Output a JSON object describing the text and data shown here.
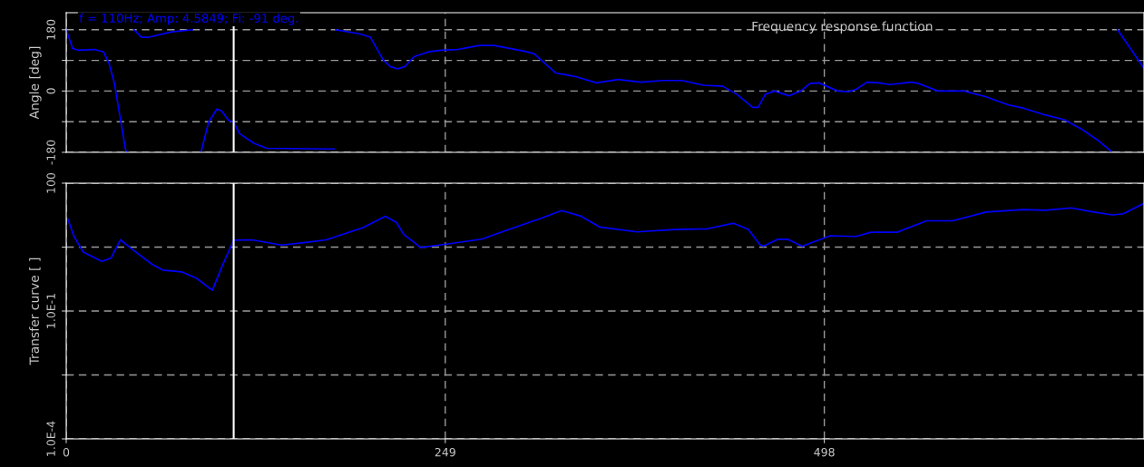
{
  "chart_data": [
    {
      "type": "line",
      "title": "Frequency response function",
      "ylabel": "Angle [deg]",
      "annotations": [
        "f = 110Hz; Amp: 4.5849; Fi: -91 deg."
      ],
      "series": [
        {
          "color": "#0000ff",
          "x": [
            0,
            4.2,
            7.8,
            18.5,
            24.5,
            28.0,
            31.6,
            35.2,
            38.8,
            39.5,
            null,
            44.5,
            49.5,
            54.3,
            68.6,
            82.9,
            null,
            88.5,
            93.6,
            99.0,
            102.0,
            106.7,
            110,
            113.9,
            123.5,
            131.8,
            171.2,
            175.9,
            null,
            177.1,
            192.6,
            199.8,
            208.2,
            212.9,
            217.7,
            222.5,
            228.4,
            238,
            246.3,
            257,
            271.4,
            280.9,
            300,
            307.2,
            314.3,
            321.5,
            330.4,
            335.8,
            348.3,
            362.6,
            377.5,
            391.8,
            404.4,
            418.7,
            431.2,
            440.7,
            450.9,
            454.5,
            459.2,
            465.2,
            474.7,
            482.5,
            488.5,
            494.4,
            506.9,
            514.1,
            518.9,
            526.0,
            533.8,
            541,
            555.3,
            560.0,
            572.6,
            589.9,
            604.2,
            619.1,
            628.6,
            642.9,
            655.5,
            667.4,
            677.5,
            685.9,
            686.5,
            null,
            690.6,
            708
          ],
          "values": [
            180,
            125,
            120,
            122,
            115,
            82,
            24,
            -72,
            -168,
            -180,
            null,
            180,
            158,
            158,
            173,
            180,
            null,
            -180,
            -91,
            -53,
            -58,
            -86,
            -91,
            -125,
            -154,
            -168,
            -170,
            -170,
            null,
            180,
            168,
            158,
            91,
            72,
            65,
            72,
            101,
            115,
            120,
            122,
            134,
            134,
            118,
            110,
            82,
            53,
            46,
            41,
            24,
            34,
            26,
            31,
            31,
            17,
            14,
            -10,
            -48,
            -48,
            -10,
            0,
            -14,
            0,
            22,
            24,
            0,
            -2,
            5,
            26,
            24,
            19,
            26,
            22,
            0,
            0,
            -17,
            -41,
            -50,
            -70,
            -84,
            -113,
            -144,
            -175,
            -180,
            null,
            180,
            67
          ]
        }
      ],
      "xlim": [
        0,
        708
      ],
      "xticks": [
        0,
        249,
        498
      ],
      "ylim": [
        -180,
        230
      ],
      "yticks": [
        180,
        {
          "value": 90,
          "label": null
        },
        0,
        {
          "value": -90,
          "label": null
        },
        -180
      ],
      "tick_labels": "y",
      "grid": true,
      "line_style": "solid",
      "marker": "none",
      "ref_lines": [
        {
          "axis": "x",
          "value": 110,
          "color": "#ffffff"
        }
      ]
    },
    {
      "type": "line",
      "ylabel": "Transfer curve [ ]",
      "log": "y",
      "series": [
        {
          "color": "#0000ff",
          "x": [
            1.0,
            5.1,
            11.2,
            23.4,
            29.5,
            35.6,
            44.1,
            56.2,
            63.6,
            75.7,
            85.5,
            96.0,
            102.5,
            110,
            122.0,
            141.5,
            158.5,
            170.7,
            195.0,
            209.6,
            216.9,
            221.8,
            232.8,
            248.6,
            272.9,
            287.5,
            311.9,
            325.3,
            338.2,
            350.6,
            375.0,
            399.4,
            421.3,
            438.4,
            448.1,
            455.5,
            457.9,
            467.6,
            473.7,
            483.5,
            501.8,
            518.9,
            528.6,
            545.7,
            565.2,
            582.3,
            604.2,
            628.6,
            643.2,
            660.3,
            672.4,
            687.1,
            694.4,
            708
          ],
          "values": [
            14.5,
            5.65,
            2.42,
            1.46,
            1.76,
            4.68,
            2.67,
            1.26,
            0.91,
            0.83,
            0.59,
            0.306,
            1.15,
            4.5849,
            4.68,
            3.53,
            4.11,
            4.68,
            9.04,
            16.8,
            12.0,
            6.22,
            3.1,
            3.66,
            4.85,
            7.48,
            15.0,
            22.7,
            16.8,
            9.33,
            7.18,
            8.2,
            8.51,
            11.5,
            8.2,
            3.65,
            3.31,
            4.83,
            4.83,
            3.31,
            5.83,
            5.62,
            7.05,
            7.05,
            13.1,
            13.1,
            21.0,
            24.0,
            23.1,
            26.3,
            21.8,
            18.0,
            19.1,
            33.6
          ]
        }
      ],
      "xlim": [
        0,
        708
      ],
      "xticks": [
        0,
        249,
        498
      ],
      "ylim": [
        0.0001,
        100
      ],
      "yticks": [
        {
          "value": 100,
          "label": "100"
        },
        {
          "value": 3.162,
          "label": null
        },
        {
          "value": 0.1,
          "label": "1.0E-1"
        },
        {
          "value": 0.003162,
          "label": null
        },
        {
          "value": 0.0001,
          "label": "1.0E-4"
        }
      ],
      "grid": true,
      "line_style": "solid",
      "marker": "none",
      "ref_lines": [
        {
          "axis": "x",
          "value": 110,
          "color": "#ffffff"
        }
      ]
    }
  ]
}
